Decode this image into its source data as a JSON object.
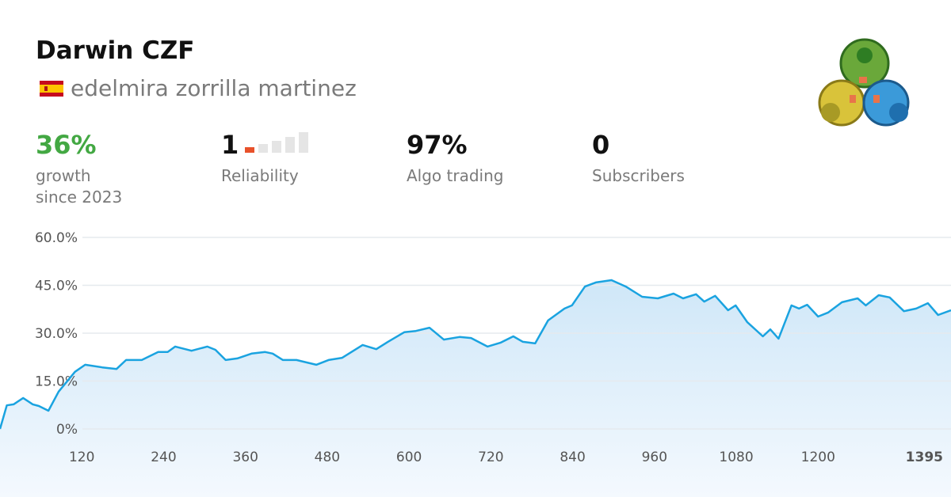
{
  "header": {
    "title": "Darwin CZF",
    "author": "edelmira zorrilla martinez"
  },
  "stats": [
    {
      "value": "36%",
      "label": [
        "growth",
        "since 2023"
      ]
    },
    {
      "value": "1",
      "label": [
        "Reliability"
      ]
    },
    {
      "value": "97%",
      "label": [
        "Algo trading"
      ]
    },
    {
      "value": "0",
      "label": [
        "Subscribers"
      ]
    }
  ],
  "chart_data": {
    "type": "area",
    "color": "#1aa3e0",
    "x": [
      0,
      10,
      20,
      34,
      48,
      57,
      71,
      86,
      110,
      125,
      150,
      171,
      185,
      208,
      232,
      246,
      257,
      281,
      304,
      316,
      331,
      348,
      369,
      389,
      400,
      415,
      435,
      464,
      482,
      502,
      532,
      552,
      569,
      593,
      610,
      630,
      651,
      674,
      691,
      715,
      734,
      753,
      767,
      785,
      804,
      828,
      839,
      858,
      874,
      897,
      918,
      942,
      965,
      988,
      1002,
      1021,
      1033,
      1049,
      1068,
      1079,
      1096,
      1119,
      1130,
      1142,
      1161,
      1172,
      1184,
      1200,
      1215,
      1235,
      1258,
      1270,
      1289,
      1305,
      1326,
      1344,
      1361,
      1376,
      1395
    ],
    "values": [
      0,
      7.4,
      7.7,
      9.7,
      7.7,
      7.2,
      5.7,
      11.7,
      17.9,
      20.1,
      19.3,
      18.8,
      21.6,
      21.6,
      24.1,
      24.1,
      25.8,
      24.5,
      25.8,
      24.8,
      21.6,
      22.1,
      23.6,
      24.1,
      23.6,
      21.6,
      21.6,
      20.1,
      21.6,
      22.3,
      26.3,
      25.0,
      27.3,
      30.3,
      30.7,
      31.7,
      28.0,
      28.8,
      28.5,
      25.8,
      27.0,
      29.0,
      27.3,
      26.8,
      34.0,
      37.7,
      38.7,
      44.6,
      45.9,
      46.6,
      44.6,
      41.4,
      40.9,
      42.4,
      40.9,
      42.2,
      39.9,
      41.7,
      37.2,
      38.7,
      33.5,
      29.0,
      31.2,
      28.3,
      38.7,
      37.7,
      38.9,
      35.2,
      36.5,
      39.7,
      40.9,
      38.7,
      41.9,
      41.2,
      36.9,
      37.7,
      39.4,
      35.7,
      37.2
    ],
    "xlim": [
      0,
      1395
    ],
    "xticks": [
      120,
      240,
      360,
      480,
      600,
      720,
      840,
      960,
      1080,
      1200,
      1395
    ],
    "ylim": [
      0,
      60
    ],
    "yticks": [
      {
        "value": 0,
        "label": "0%"
      },
      {
        "value": 15,
        "label": "15.0%"
      },
      {
        "value": 30,
        "label": "30.0%"
      },
      {
        "value": 45,
        "label": "45.0%"
      },
      {
        "value": 60,
        "label": "60.0%"
      }
    ],
    "grid": true
  }
}
